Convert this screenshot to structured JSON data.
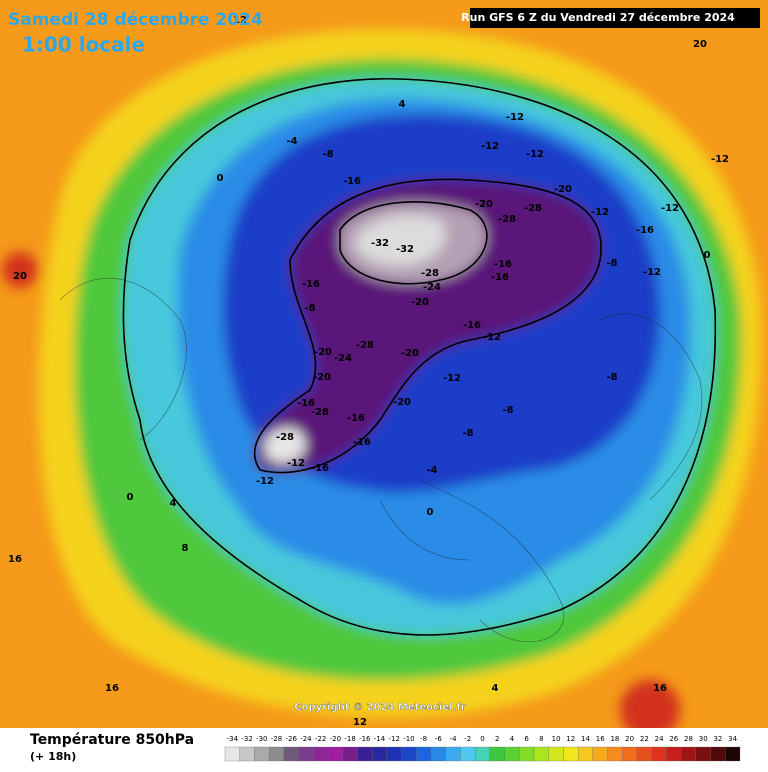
{
  "header": {
    "date": "Samedi 28 décembre 2024",
    "time": "1:00 locale",
    "run": "Run GFS 6 Z du Vendredi 27 décembre 2024"
  },
  "copyright": "Copyright © 2024 Meteociel.fr",
  "footer": {
    "title": "Température 850hPa",
    "lead": "(+ 18h)"
  },
  "colorbar": {
    "values": [
      -34,
      -32,
      -30,
      -28,
      -26,
      -24,
      -22,
      -20,
      -18,
      -16,
      -14,
      -12,
      -10,
      -8,
      -6,
      -4,
      -2,
      0,
      2,
      4,
      6,
      8,
      10,
      12,
      14,
      16,
      18,
      20,
      22,
      24,
      26,
      28,
      30,
      32,
      34
    ],
    "colors": [
      "#e6e6e6",
      "#c8c8c8",
      "#aaaaaa",
      "#8c8c8c",
      "#6e5a78",
      "#7a3c8c",
      "#8c2896",
      "#a01ea0",
      "#781e8c",
      "#3c1e96",
      "#2828a0",
      "#1e32b4",
      "#1e46c8",
      "#1e64dc",
      "#2888e6",
      "#3caaf0",
      "#50c8f0",
      "#46d2b4",
      "#3cc83c",
      "#5ad232",
      "#82dc28",
      "#aae61e",
      "#d2e61e",
      "#f0e61e",
      "#f5c81e",
      "#f5aa1e",
      "#f58c1e",
      "#f06e1e",
      "#e6501e",
      "#dc321e",
      "#c81e1e",
      "#a01414",
      "#781010",
      "#500a0a",
      "#1e0505"
    ]
  },
  "contour_labels": [
    -32,
    -32,
    -28,
    -24,
    -20,
    -28,
    -20,
    -24,
    -20,
    -20,
    -20,
    -12,
    -12,
    -16,
    -16,
    -16,
    -20,
    -28,
    -28,
    -20,
    -12,
    -12,
    -12,
    -16,
    -8,
    -4,
    -16,
    -8,
    -16,
    -28,
    -28,
    -12,
    -12,
    -16,
    -16,
    -16,
    -8,
    -8,
    -4,
    0,
    4,
    0,
    0,
    4,
    8,
    -12,
    -8,
    -8,
    0,
    -12,
    20,
    20,
    16,
    16,
    4,
    12,
    16,
    -12,
    -16,
    -12,
    12
  ]
}
